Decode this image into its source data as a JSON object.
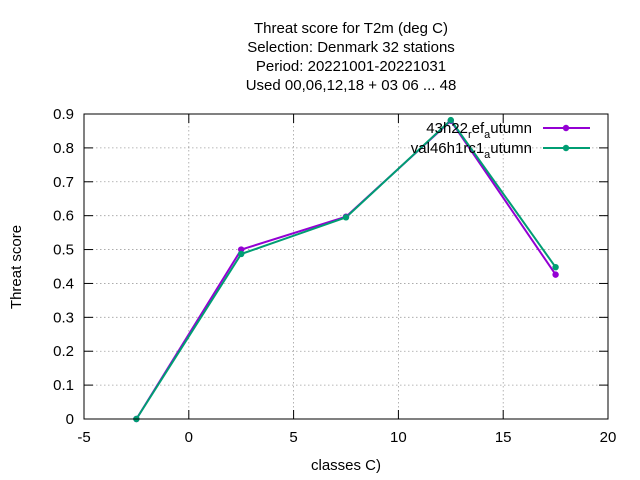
{
  "chart_data": {
    "type": "line",
    "title_lines": [
      "Threat score  for T2m (deg C)",
      "Selection: Denmark     32 stations",
      "Period: 20221001-20221031",
      "Used  00,06,12,18  + 03 06 ... 48"
    ],
    "xlabel": "classes C)",
    "ylabel": "Threat score",
    "xlim": [
      -5,
      20
    ],
    "ylim": [
      0,
      0.9
    ],
    "x_ticks": [
      "-5",
      "0",
      "5",
      "10",
      "15",
      "20"
    ],
    "y_ticks": [
      "0",
      "0.1",
      "0.2",
      "0.3",
      "0.4",
      "0.5",
      "0.6",
      "0.7",
      "0.8",
      "0.9"
    ],
    "grid": true,
    "legend_position": "top-right",
    "series": [
      {
        "name_main": "43h22",
        "name_sub": "r",
        "name_mid": "ef",
        "name_sub2": "a",
        "name_end": "utumn",
        "color": "#9400d3",
        "x": [
          -2.5,
          2.5,
          7.5,
          12.5,
          17.5
        ],
        "y": [
          0.0,
          0.5,
          0.597,
          0.88,
          0.426
        ]
      },
      {
        "name_main": "val46h1rc1",
        "name_sub": "",
        "name_mid": "",
        "name_sub2": "a",
        "name_end": "utumn",
        "color": "#009e73",
        "x": [
          -2.5,
          2.5,
          7.5,
          12.5,
          17.5
        ],
        "y": [
          0.0,
          0.487,
          0.595,
          0.882,
          0.448
        ]
      }
    ]
  }
}
